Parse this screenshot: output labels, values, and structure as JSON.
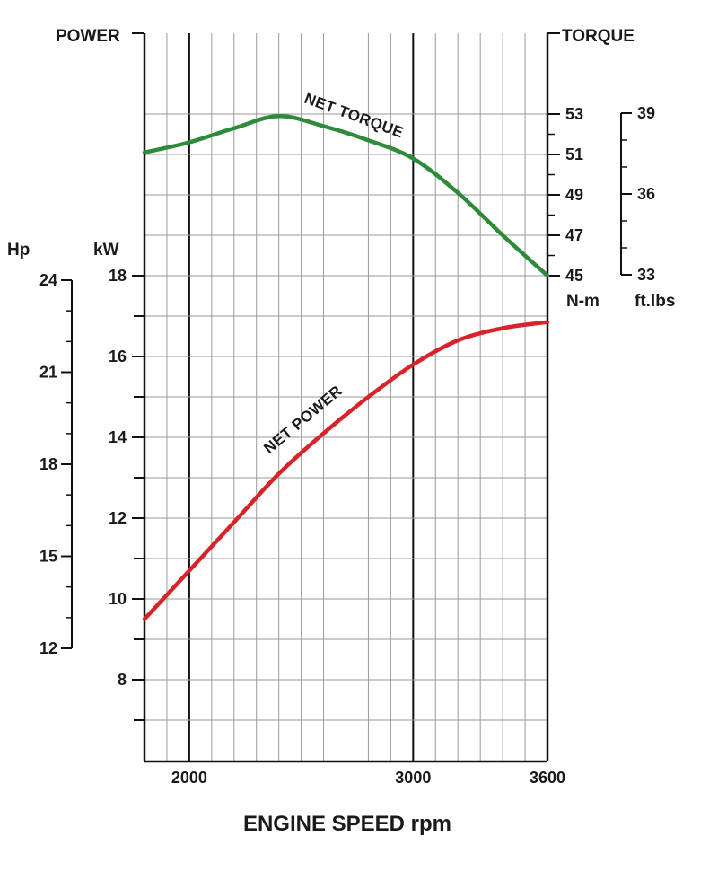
{
  "chart_data": {
    "type": "line",
    "x_label": "ENGINE SPEED rpm",
    "x_ticks": [
      2000,
      3000,
      3600
    ],
    "x_range": [
      1800,
      3600
    ],
    "left_title": "POWER",
    "right_title": "TORQUE",
    "kw_axis": {
      "label": "kW",
      "ticks": [
        8,
        10,
        12,
        14,
        16,
        18
      ]
    },
    "hp_axis": {
      "label": "Hp",
      "ticks": [
        12,
        15,
        18,
        21,
        24
      ]
    },
    "nm_axis": {
      "label": "N-m",
      "ticks": [
        45,
        47,
        49,
        51,
        53
      ]
    },
    "ftlbs_axis": {
      "label": "ft.lbs",
      "ticks": [
        33,
        36,
        39
      ]
    },
    "series": [
      {
        "name": "NET TORQUE",
        "color": "#2e8b3a",
        "unit": "N-m",
        "x": [
          1800,
          2000,
          2200,
          2400,
          2600,
          2800,
          3000,
          3200,
          3400,
          3600
        ],
        "y": [
          51.1,
          51.6,
          52.3,
          52.9,
          52.4,
          51.7,
          50.8,
          49.1,
          47.0,
          45.0
        ]
      },
      {
        "name": "NET POWER",
        "color": "#d8232a",
        "unit": "kW",
        "x": [
          1800,
          2000,
          2200,
          2400,
          2600,
          2800,
          3000,
          3200,
          3400,
          3600
        ],
        "y": [
          9.5,
          10.7,
          11.9,
          13.1,
          14.1,
          15.0,
          15.8,
          16.4,
          16.7,
          16.85
        ]
      }
    ]
  }
}
